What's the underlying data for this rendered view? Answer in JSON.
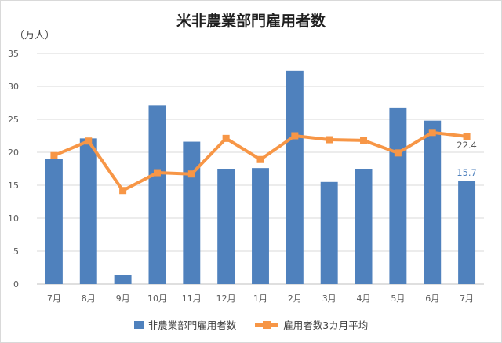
{
  "chart_data": {
    "type": "bar",
    "title": "米非農業部門雇用者数",
    "unit_label": "（万人）",
    "categories": [
      "7月",
      "8月",
      "9月",
      "10月",
      "11月",
      "12月",
      "1月",
      "2月",
      "3月",
      "4月",
      "5月",
      "6月",
      "7月"
    ],
    "ylim": [
      0,
      35
    ],
    "yticks": [
      0,
      5,
      10,
      15,
      20,
      25,
      30,
      35
    ],
    "grid": true,
    "legend_position": "bottom",
    "series": [
      {
        "name": "非農業部門雇用者数",
        "type": "bar",
        "color": "#4f81bd",
        "values": [
          19.0,
          22.1,
          1.4,
          27.1,
          21.6,
          17.5,
          17.6,
          32.4,
          15.5,
          17.5,
          26.8,
          24.8,
          15.7
        ]
      },
      {
        "name": "雇用者数3カ月平均",
        "type": "line",
        "color": "#f79646",
        "values": [
          19.5,
          21.7,
          14.2,
          16.9,
          16.7,
          22.1,
          18.9,
          22.5,
          21.9,
          21.8,
          19.9,
          23.0,
          22.4
        ]
      }
    ],
    "annotations": [
      {
        "series": 1,
        "index": 12,
        "text": "22.4"
      },
      {
        "series": 0,
        "index": 12,
        "text": "15.7"
      }
    ]
  }
}
